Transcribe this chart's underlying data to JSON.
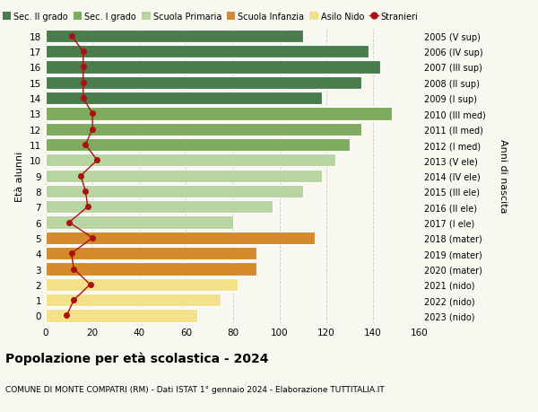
{
  "ages": [
    18,
    17,
    16,
    15,
    14,
    13,
    12,
    11,
    10,
    9,
    8,
    7,
    6,
    5,
    4,
    3,
    2,
    1,
    0
  ],
  "bar_values": [
    110,
    138,
    143,
    135,
    118,
    148,
    135,
    130,
    124,
    118,
    110,
    97,
    80,
    115,
    90,
    90,
    82,
    75,
    65
  ],
  "bar_colors": [
    "#4a7c4e",
    "#4a7c4e",
    "#4a7c4e",
    "#4a7c4e",
    "#4a7c4e",
    "#7eab5e",
    "#7eab5e",
    "#7eab5e",
    "#b8d4a0",
    "#b8d4a0",
    "#b8d4a0",
    "#b8d4a0",
    "#b8d4a0",
    "#d4892a",
    "#d4892a",
    "#d4892a",
    "#f5e08a",
    "#f5e08a",
    "#f5e08a"
  ],
  "stranieri_values": [
    11,
    16,
    16,
    16,
    16,
    20,
    20,
    17,
    22,
    15,
    17,
    18,
    10,
    20,
    11,
    12,
    19,
    12,
    9
  ],
  "right_labels": [
    "2005 (V sup)",
    "2006 (IV sup)",
    "2007 (III sup)",
    "2008 (II sup)",
    "2009 (I sup)",
    "2010 (III med)",
    "2011 (II med)",
    "2012 (I med)",
    "2013 (V ele)",
    "2014 (IV ele)",
    "2015 (III ele)",
    "2016 (II ele)",
    "2017 (I ele)",
    "2018 (mater)",
    "2019 (mater)",
    "2020 (mater)",
    "2021 (nido)",
    "2022 (nido)",
    "2023 (nido)"
  ],
  "ylabel_left": "Età alunni",
  "ylabel_right": "Anni di nascita",
  "xlim": [
    0,
    160
  ],
  "xticks": [
    0,
    20,
    40,
    60,
    80,
    100,
    120,
    140,
    160
  ],
  "title": "Popolazione per età scolastica - 2024",
  "subtitle": "COMUNE DI MONTE COMPATRI (RM) - Dati ISTAT 1° gennaio 2024 - Elaborazione TUTTITALIA.IT",
  "legend_labels": [
    "Sec. II grado",
    "Sec. I grado",
    "Scuola Primaria",
    "Scuola Infanzia",
    "Asilo Nido",
    "Stranieri"
  ],
  "legend_colors": [
    "#4a7c4e",
    "#7eab5e",
    "#b8d4a0",
    "#d4892a",
    "#f5e08a",
    "#aa1111"
  ],
  "background_color": "#f8f8f0",
  "stranieri_color": "#aa1111",
  "grid_color": "#cccccc"
}
